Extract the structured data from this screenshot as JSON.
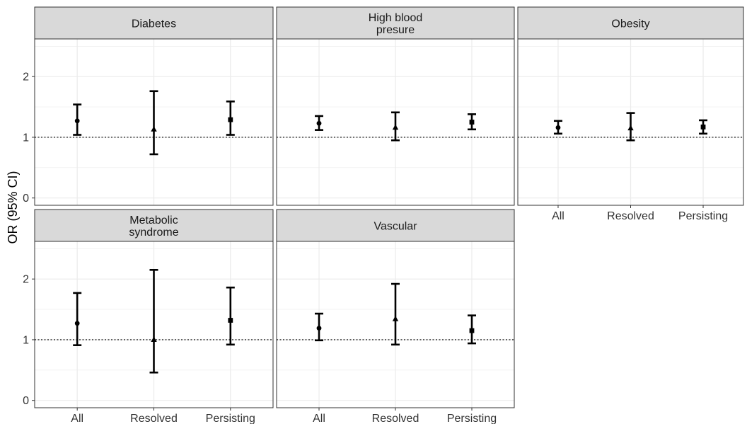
{
  "chart_data": {
    "type": "scatter",
    "ylabel": "OR (95% CI)",
    "categories": [
      "All",
      "Resolved",
      "Persisting"
    ],
    "ylim": [
      -0.12,
      2.62
    ],
    "yticks": [
      0,
      1,
      2
    ],
    "reference_line": 1,
    "markers": [
      "circle",
      "triangle",
      "square"
    ],
    "grid": true,
    "colors": {
      "mark": "#000000",
      "strip": "#d9d9d9",
      "grid": "#ebebeb",
      "border": "#333333"
    },
    "panels": [
      {
        "title": [
          "Diabetes"
        ],
        "points": [
          {
            "category": "All",
            "or": 1.27,
            "lower": 1.04,
            "upper": 1.54
          },
          {
            "category": "Resolved",
            "or": 1.13,
            "lower": 0.72,
            "upper": 1.76
          },
          {
            "category": "Persisting",
            "or": 1.29,
            "lower": 1.04,
            "upper": 1.59
          }
        ]
      },
      {
        "title": [
          "High blood",
          "presure"
        ],
        "points": [
          {
            "category": "All",
            "or": 1.23,
            "lower": 1.12,
            "upper": 1.35
          },
          {
            "category": "Resolved",
            "or": 1.16,
            "lower": 0.95,
            "upper": 1.41
          },
          {
            "category": "Persisting",
            "or": 1.25,
            "lower": 1.13,
            "upper": 1.38
          }
        ]
      },
      {
        "title": [
          "Obesity"
        ],
        "points": [
          {
            "category": "All",
            "or": 1.16,
            "lower": 1.06,
            "upper": 1.27
          },
          {
            "category": "Resolved",
            "or": 1.15,
            "lower": 0.95,
            "upper": 1.4
          },
          {
            "category": "Persisting",
            "or": 1.17,
            "lower": 1.06,
            "upper": 1.28
          }
        ]
      },
      {
        "title": [
          "Metabolic",
          "syndrome"
        ],
        "points": [
          {
            "category": "All",
            "or": 1.27,
            "lower": 0.91,
            "upper": 1.77
          },
          {
            "category": "Resolved",
            "or": 1.0,
            "lower": 0.46,
            "upper": 2.15
          },
          {
            "category": "Persisting",
            "or": 1.32,
            "lower": 0.92,
            "upper": 1.86
          }
        ]
      },
      {
        "title": [
          "Vascular"
        ],
        "points": [
          {
            "category": "All",
            "or": 1.19,
            "lower": 0.99,
            "upper": 1.43
          },
          {
            "category": "Resolved",
            "or": 1.34,
            "lower": 0.92,
            "upper": 1.92
          },
          {
            "category": "Persisting",
            "or": 1.15,
            "lower": 0.94,
            "upper": 1.4
          }
        ]
      }
    ]
  }
}
